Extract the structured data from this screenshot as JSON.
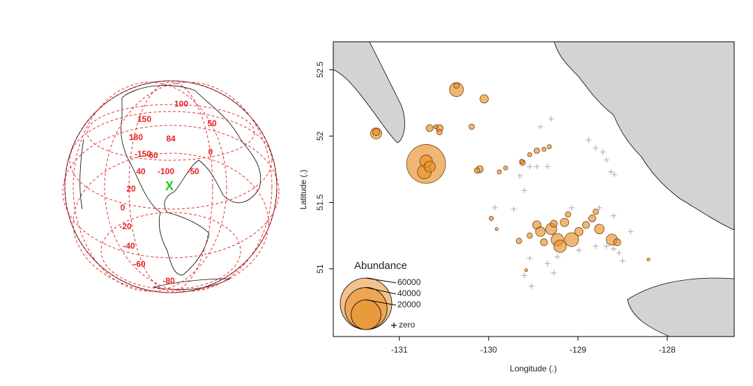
{
  "globe": {
    "labels": [
      "100",
      "150",
      "50",
      "180",
      "84",
      "-150",
      "60",
      "0",
      "40",
      "-100",
      "-50",
      "20",
      "0",
      "-20",
      "-40",
      "-60",
      "-80"
    ],
    "marker": "X"
  },
  "chart_data": {
    "type": "bubble",
    "xlabel": "Longitude (.)",
    "ylabel": "Latitude (.)",
    "xlim": [
      -131.74,
      -127.25
    ],
    "ylim": [
      50.49,
      52.71
    ],
    "xticks": [
      -131,
      -130,
      -129,
      -128
    ],
    "yticks": [
      51,
      51.5,
      52,
      52.5
    ],
    "size_legend": [
      60000,
      40000,
      20000
    ],
    "series": [
      {
        "name": "Abundance",
        "color": "#e8902a",
        "x": [
          -131.26,
          -131.26,
          -130.36,
          -130.36,
          -130.05,
          -130.66,
          -130.55,
          -130.55,
          -130.59,
          -130.19,
          -130.7,
          -130.72,
          -130.7,
          -130.66,
          -130.1,
          -130.13,
          -129.81,
          -129.62,
          -129.54,
          -129.46,
          -129.38,
          -129.32,
          -129.63,
          -129.88,
          -129.46,
          -129.42,
          -129.3,
          -129.23,
          -129.15,
          -128.99,
          -128.84,
          -128.76,
          -129.07,
          -129.2,
          -128.62,
          -128.56,
          -129.66,
          -129.54,
          -128.91,
          -128.8,
          -129.11,
          -129.27,
          -129.38,
          -129.97,
          -129.91,
          -128.21,
          -129.58
        ],
        "y": [
          52.02,
          52.03,
          52.35,
          52.38,
          52.28,
          52.06,
          52.06,
          52.03,
          52.07,
          52.07,
          51.79,
          51.73,
          51.81,
          51.77,
          51.75,
          51.74,
          51.76,
          51.8,
          51.86,
          51.89,
          51.9,
          51.92,
          51.81,
          51.73,
          51.33,
          51.28,
          51.3,
          51.22,
          51.35,
          51.28,
          51.38,
          51.3,
          51.22,
          51.17,
          51.22,
          51.2,
          51.21,
          51.25,
          51.33,
          51.43,
          51.41,
          51.34,
          51.2,
          51.38,
          51.3,
          51.07,
          50.99
        ],
        "size": [
          2800,
          1100,
          4400,
          700,
          1600,
          1100,
          1100,
          700,
          400,
          700,
          34000,
          4400,
          3500,
          2800,
          1100,
          700,
          400,
          700,
          400,
          700,
          400,
          400,
          400,
          400,
          1600,
          2100,
          2800,
          3500,
          1600,
          1600,
          1100,
          2100,
          4400,
          3500,
          2800,
          1100,
          700,
          700,
          1100,
          700,
          700,
          1100,
          1100,
          400,
          200,
          200,
          200
        ]
      },
      {
        "name": "zero",
        "color": "#b4b4b4",
        "x": [
          -129.3,
          -129.42,
          -129.54,
          -129.46,
          -129.34,
          -129.65,
          -129.6,
          -128.88,
          -128.8,
          -128.72,
          -128.68,
          -128.63,
          -128.59,
          -129.72,
          -129.93,
          -129.07,
          -128.76,
          -128.6,
          -128.41,
          -128.68,
          -128.6,
          -128.54,
          -128.5,
          -128.8,
          -129.54,
          -129.23,
          -129.34,
          -129.6,
          -129.52,
          -129.27,
          -128.99
        ],
        "y": [
          52.13,
          52.07,
          51.77,
          51.77,
          51.77,
          51.7,
          51.59,
          51.97,
          51.91,
          51.88,
          51.82,
          51.73,
          51.71,
          51.45,
          51.46,
          51.46,
          51.46,
          51.4,
          51.28,
          51.17,
          51.15,
          51.12,
          51.06,
          51.17,
          51.08,
          51.09,
          51.04,
          50.95,
          50.87,
          50.97,
          51.14
        ]
      }
    ]
  }
}
